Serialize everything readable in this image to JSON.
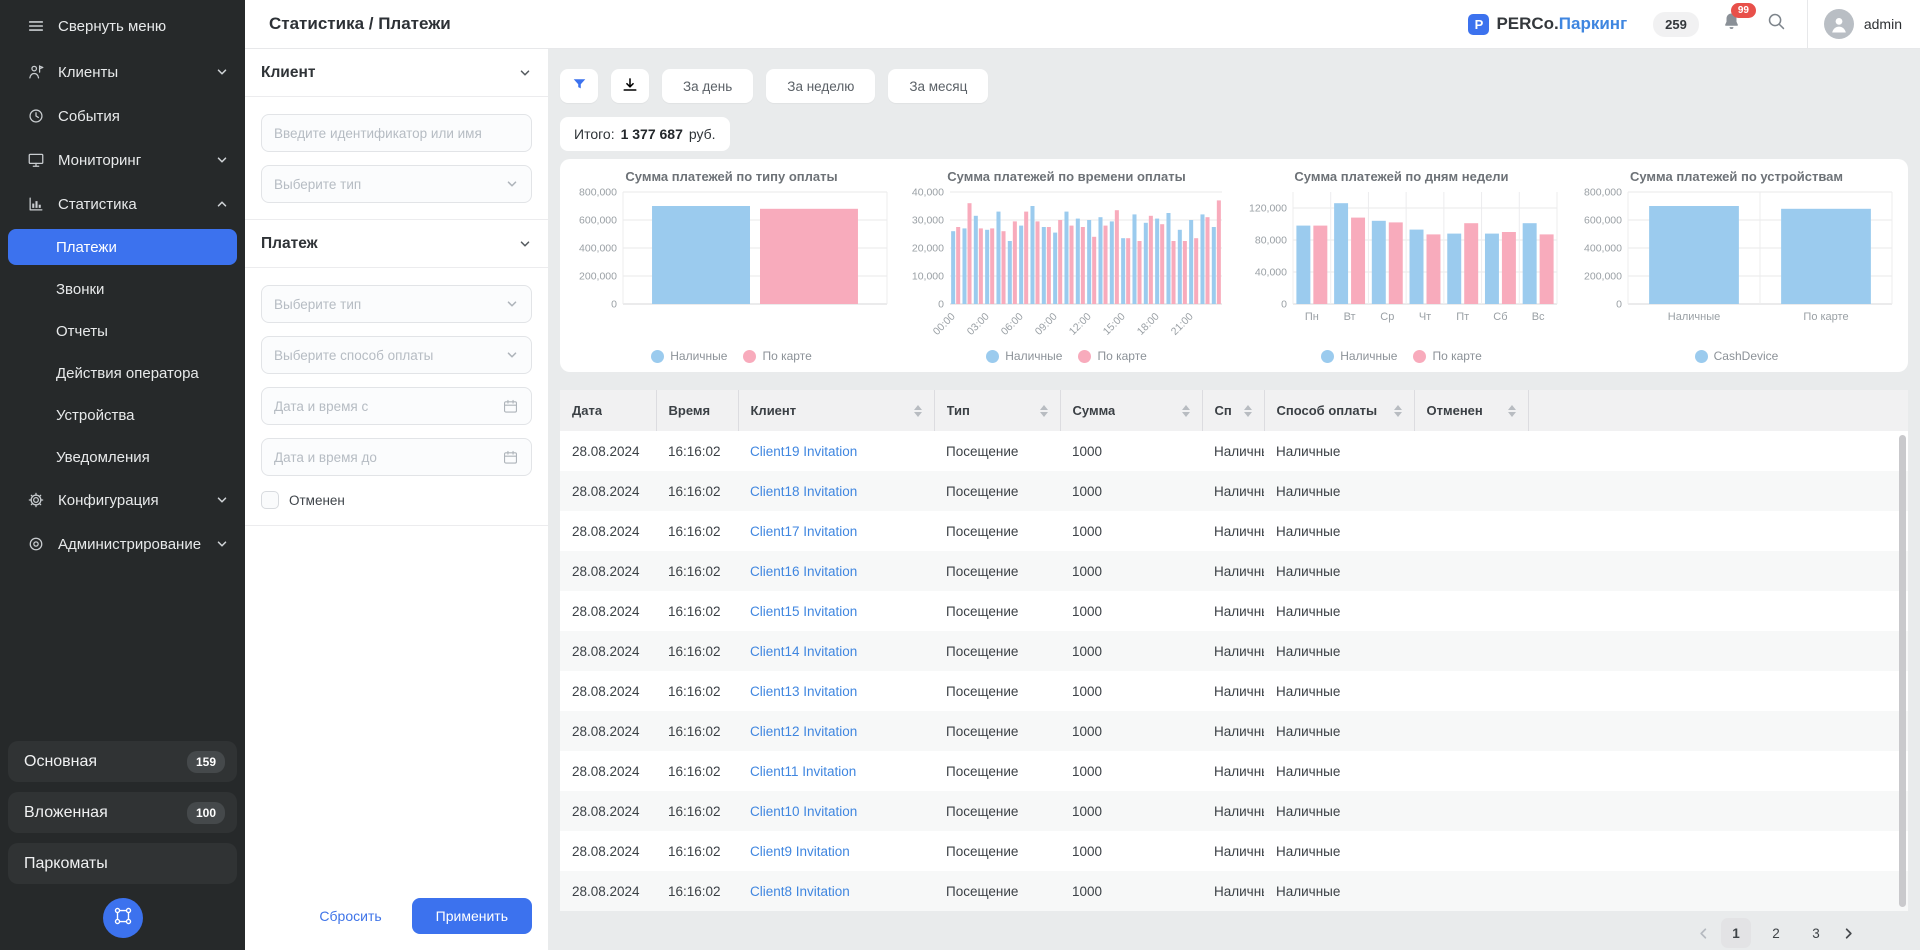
{
  "colors": {
    "accent": "#3c72ee",
    "bar_blue": "#9bcbee",
    "bar_pink": "#f8abbc",
    "link": "#3f86e0",
    "badge_red": "#e8504a"
  },
  "header": {
    "title": "Статистика / Платежи",
    "logo": {
      "mark": "P",
      "brand": "PERCo.",
      "product": "Паркинг"
    },
    "counter": "259",
    "notifications": "99",
    "user": "admin"
  },
  "sidebar": {
    "collapse_label": "Свернуть меню",
    "menu": [
      {
        "kind": "item",
        "icon": "clients-icon",
        "label": "Клиенты",
        "chevron": "down"
      },
      {
        "kind": "item",
        "icon": "events-icon",
        "label": "События",
        "chevron": ""
      },
      {
        "kind": "item",
        "icon": "monitoring-icon",
        "label": "Мониторинг",
        "chevron": "down"
      },
      {
        "kind": "item",
        "icon": "statistics-icon",
        "label": "Статистика",
        "chevron": "up"
      },
      {
        "kind": "sub",
        "label": "Платежи",
        "active": true
      },
      {
        "kind": "sub",
        "label": "Звонки",
        "active": false
      },
      {
        "kind": "sub",
        "label": "Отчеты",
        "active": false
      },
      {
        "kind": "sub",
        "label": "Действия оператора",
        "active": false
      },
      {
        "kind": "sub",
        "label": "Устройства",
        "active": false
      },
      {
        "kind": "sub",
        "label": "Уведомления",
        "active": false
      },
      {
        "kind": "item",
        "icon": "configuration-icon",
        "label": "Конфигурация",
        "chevron": "down"
      },
      {
        "kind": "item",
        "icon": "administration-icon",
        "label": "Администрирование",
        "chevron": "down"
      }
    ],
    "zones": [
      {
        "label": "Основная",
        "badge": "159"
      },
      {
        "label": "Вложенная",
        "badge": "100"
      },
      {
        "label": "Паркоматы",
        "badge": ""
      }
    ]
  },
  "filters": {
    "sections": [
      {
        "title": "Клиент",
        "fields": [
          {
            "kind": "text",
            "placeholder": "Введите идентификатор или имя"
          },
          {
            "kind": "select",
            "placeholder": "Выберите тип"
          }
        ]
      },
      {
        "title": "Платеж",
        "fields": [
          {
            "kind": "select",
            "placeholder": "Выберите тип"
          },
          {
            "kind": "select",
            "placeholder": "Выберите способ оплаты"
          },
          {
            "kind": "date",
            "placeholder": "Дата и время с"
          },
          {
            "kind": "date",
            "placeholder": "Дата и время до"
          },
          {
            "kind": "checkbox",
            "label": "Отменен",
            "checked": false
          }
        ]
      }
    ],
    "reset_label": "Сбросить",
    "apply_label": "Применить"
  },
  "toolbar": {
    "periods": [
      "За день",
      "За неделю",
      "За месяц"
    ],
    "total_label": "Итого:",
    "total_value": "1 377 687",
    "total_units": "руб."
  },
  "chart_data": [
    {
      "type": "bar",
      "title": "Сумма платежей по типу оплаты",
      "categories": [
        ""
      ],
      "series": [
        {
          "name": "Наличные",
          "color": "#9bcbee",
          "values": [
            700000
          ]
        },
        {
          "name": "По карте",
          "color": "#f8abbc",
          "values": [
            680000
          ]
        }
      ],
      "ylim": [
        0,
        800000
      ],
      "ytick": 200000,
      "bar_frac": 0.78,
      "ser_gap": 10,
      "cat_lines": true,
      "legend": "bottom",
      "grid": true
    },
    {
      "type": "bar",
      "title": "Сумма платежей по времени оплаты",
      "categories": [
        "00:00",
        "01:00",
        "02:00",
        "03:00",
        "04:00",
        "05:00",
        "06:00",
        "07:00",
        "08:00",
        "09:00",
        "10:00",
        "11:00",
        "12:00",
        "13:00",
        "14:00",
        "15:00",
        "16:00",
        "17:00",
        "18:00",
        "19:00",
        "20:00",
        "21:00",
        "22:00",
        "23:00"
      ],
      "series": [
        {
          "name": "Наличные",
          "color": "#9bcbee",
          "values": [
            26000,
            27000,
            31500,
            26500,
            33000,
            22500,
            28000,
            35000,
            27500,
            25500,
            33000,
            30500,
            30000,
            31000,
            29500,
            23500,
            32000,
            29000,
            30500,
            32500,
            26500,
            30000,
            32000,
            27500
          ]
        },
        {
          "name": "По карте",
          "color": "#f8abbc",
          "values": [
            27500,
            36000,
            27000,
            27000,
            26000,
            29500,
            33000,
            29500,
            27500,
            30000,
            28000,
            27500,
            24000,
            28000,
            33500,
            23500,
            22500,
            31500,
            28500,
            22500,
            22500,
            23500,
            31000,
            37000
          ]
        }
      ],
      "ylim": [
        0,
        40000
      ],
      "ytick": 10000,
      "bar_frac": 0.8,
      "ser_gap": 1,
      "x_label_step": 3,
      "x_label_rotation": -45,
      "legend": "bottom",
      "grid": true
    },
    {
      "type": "bar",
      "title": "Сумма платежей по дням недели",
      "categories": [
        "Пн",
        "Вт",
        "Ср",
        "Чт",
        "Пт",
        "Сб",
        "Вс"
      ],
      "series": [
        {
          "name": "Наличные",
          "color": "#9bcbee",
          "values": [
            98000,
            126000,
            104000,
            93000,
            88000,
            88000,
            101000
          ]
        },
        {
          "name": "По карте",
          "color": "#f8abbc",
          "values": [
            98000,
            108000,
            102000,
            87000,
            101000,
            90000,
            87000
          ]
        }
      ],
      "ylim": [
        0,
        140000
      ],
      "ytick": 40000,
      "bar_frac": 0.82,
      "ser_gap": 3,
      "cat_lines": true,
      "legend": "bottom",
      "grid": true
    },
    {
      "type": "bar",
      "title": "Сумма платежей по устройствам",
      "categories": [
        "Наличные",
        "По карте"
      ],
      "series": [
        {
          "name": "CashDevice",
          "color": "#9bcbee",
          "values": [
            700000,
            680000
          ]
        }
      ],
      "ylim": [
        0,
        800000
      ],
      "ytick": 200000,
      "bar_frac": 0.68,
      "ser_gap": 0,
      "cat_lines": true,
      "legend": "bottom",
      "grid": true
    }
  ],
  "table": {
    "columns": [
      {
        "label": "Дата",
        "sortable": false
      },
      {
        "label": "Время",
        "sortable": false
      },
      {
        "label": "Клиент",
        "sortable": true
      },
      {
        "label": "Тип",
        "sortable": true
      },
      {
        "label": "Сумма",
        "sortable": true
      },
      {
        "label": "Сп",
        "sortable": true,
        "clip": true
      },
      {
        "label": "Способ оплаты",
        "sortable": true
      },
      {
        "label": "Отменен",
        "sortable": true
      },
      {
        "label": "",
        "sortable": false
      }
    ],
    "rows": [
      {
        "date": "28.08.2024",
        "time": "16:16:02",
        "client": "Client19 Invitation",
        "type": "Посещение",
        "amount": "1000",
        "payment_short": "Наличные",
        "payment": "Наличные",
        "canceled": ""
      },
      {
        "date": "28.08.2024",
        "time": "16:16:02",
        "client": "Client18 Invitation",
        "type": "Посещение",
        "amount": "1000",
        "payment_short": "Наличные",
        "payment": "Наличные",
        "canceled": ""
      },
      {
        "date": "28.08.2024",
        "time": "16:16:02",
        "client": "Client17 Invitation",
        "type": "Посещение",
        "amount": "1000",
        "payment_short": "Наличные",
        "payment": "Наличные",
        "canceled": ""
      },
      {
        "date": "28.08.2024",
        "time": "16:16:02",
        "client": "Client16 Invitation",
        "type": "Посещение",
        "amount": "1000",
        "payment_short": "Наличные",
        "payment": "Наличные",
        "canceled": ""
      },
      {
        "date": "28.08.2024",
        "time": "16:16:02",
        "client": "Client15 Invitation",
        "type": "Посещение",
        "amount": "1000",
        "payment_short": "Наличные",
        "payment": "Наличные",
        "canceled": ""
      },
      {
        "date": "28.08.2024",
        "time": "16:16:02",
        "client": "Client14 Invitation",
        "type": "Посещение",
        "amount": "1000",
        "payment_short": "Наличные",
        "payment": "Наличные",
        "canceled": ""
      },
      {
        "date": "28.08.2024",
        "time": "16:16:02",
        "client": "Client13 Invitation",
        "type": "Посещение",
        "amount": "1000",
        "payment_short": "Наличные",
        "payment": "Наличные",
        "canceled": ""
      },
      {
        "date": "28.08.2024",
        "time": "16:16:02",
        "client": "Client12 Invitation",
        "type": "Посещение",
        "amount": "1000",
        "payment_short": "Наличные",
        "payment": "Наличные",
        "canceled": ""
      },
      {
        "date": "28.08.2024",
        "time": "16:16:02",
        "client": "Client11 Invitation",
        "type": "Посещение",
        "amount": "1000",
        "payment_short": "Наличные",
        "payment": "Наличные",
        "canceled": ""
      },
      {
        "date": "28.08.2024",
        "time": "16:16:02",
        "client": "Client10 Invitation",
        "type": "Посещение",
        "amount": "1000",
        "payment_short": "Наличные",
        "payment": "Наличные",
        "canceled": ""
      },
      {
        "date": "28.08.2024",
        "time": "16:16:02",
        "client": "Client9 Invitation",
        "type": "Посещение",
        "amount": "1000",
        "payment_short": "Наличные",
        "payment": "Наличные",
        "canceled": ""
      },
      {
        "date": "28.08.2024",
        "time": "16:16:02",
        "client": "Client8 Invitation",
        "type": "Посещение",
        "amount": "1000",
        "payment_short": "Наличные",
        "payment": "Наличные",
        "canceled": ""
      }
    ]
  },
  "pagination": {
    "pages": [
      "1",
      "2",
      "3"
    ],
    "active": "1"
  }
}
